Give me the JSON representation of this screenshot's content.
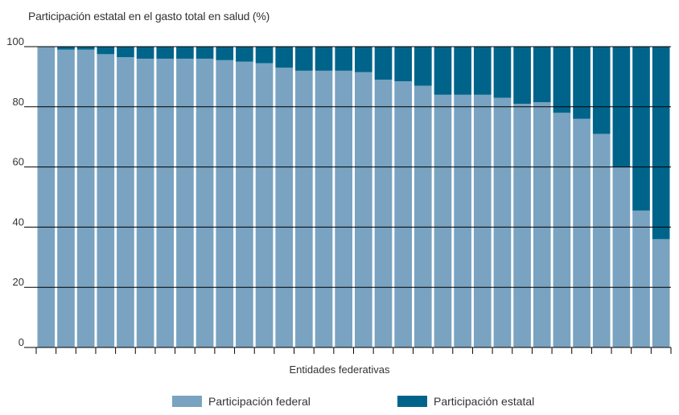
{
  "chart_data": {
    "type": "bar",
    "stacked": true,
    "title": "Participación estatal en el gasto total en salud (%)",
    "xlabel": "Entidades federativas",
    "ylabel": "",
    "ylim": [
      0,
      100
    ],
    "yticks": [
      0,
      20,
      40,
      60,
      80,
      100
    ],
    "grid": true,
    "legend_position": "bottom",
    "series": [
      {
        "name": "Participación federal",
        "color": "#79a3c0",
        "values": [
          100,
          99,
          99,
          97.5,
          96.5,
          96,
          96,
          96,
          96,
          95.5,
          95,
          94.5,
          93,
          92,
          92,
          92,
          91.5,
          89,
          88.5,
          87,
          84,
          84,
          84,
          83,
          81,
          81.5,
          78,
          76,
          71,
          60,
          45.5,
          36
        ]
      },
      {
        "name": "Participación estatal",
        "color": "#00648a",
        "values": [
          0,
          1,
          1,
          2.5,
          3.5,
          4,
          4,
          4,
          4,
          4.5,
          5,
          5.5,
          7,
          8,
          8,
          8,
          8.5,
          11,
          11.5,
          13,
          16,
          16,
          16,
          17,
          19,
          18.5,
          22,
          24,
          29,
          40,
          54.5,
          64
        ]
      }
    ]
  }
}
